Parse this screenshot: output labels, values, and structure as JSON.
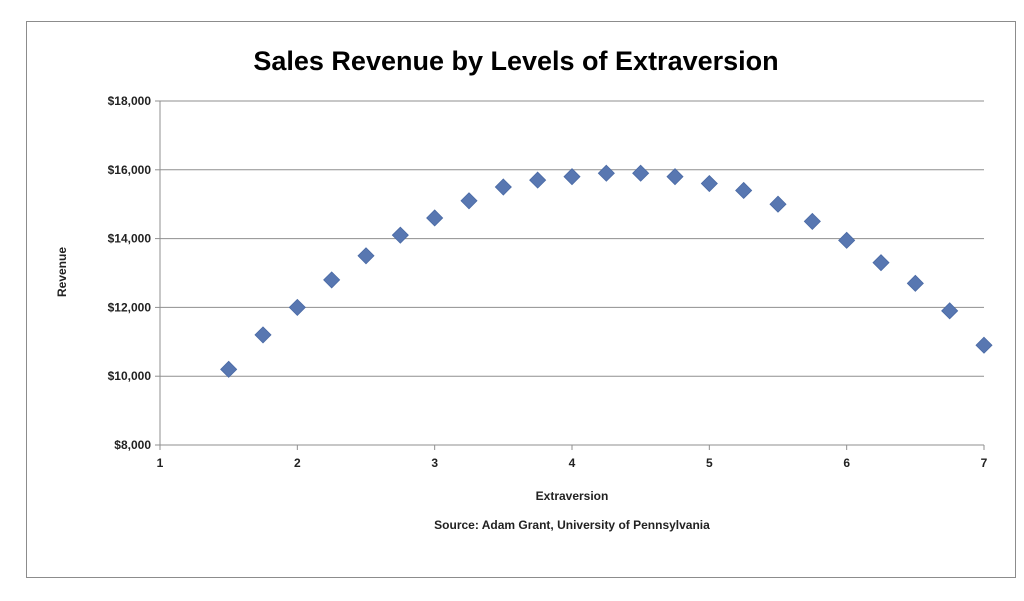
{
  "chart_data": {
    "type": "scatter",
    "title": "Sales Revenue by Levels of Extraversion",
    "xlabel": "Extraversion",
    "ylabel": "Revenue",
    "source": "Source: Adam Grant, University of Pennsylvania",
    "xlim": [
      1,
      7
    ],
    "ylim": [
      8000,
      18000
    ],
    "x_ticks": [
      1,
      2,
      3,
      4,
      5,
      6,
      7
    ],
    "y_ticks": [
      8000,
      10000,
      12000,
      14000,
      16000,
      18000
    ],
    "x_tick_labels": [
      "1",
      "2",
      "3",
      "4",
      "5",
      "6",
      "7"
    ],
    "y_tick_labels": [
      "$8,000",
      "$10,000",
      "$12,000",
      "$14,000",
      "$16,000",
      "$18,000"
    ],
    "grid": "horizontal",
    "marker": "diamond",
    "marker_color": "#5877b1",
    "points": [
      {
        "x": 1.5,
        "y": 10200
      },
      {
        "x": 1.75,
        "y": 11200
      },
      {
        "x": 2.0,
        "y": 12000
      },
      {
        "x": 2.25,
        "y": 12800
      },
      {
        "x": 2.5,
        "y": 13500
      },
      {
        "x": 2.75,
        "y": 14100
      },
      {
        "x": 3.0,
        "y": 14600
      },
      {
        "x": 3.25,
        "y": 15100
      },
      {
        "x": 3.5,
        "y": 15500
      },
      {
        "x": 3.75,
        "y": 15700
      },
      {
        "x": 4.0,
        "y": 15800
      },
      {
        "x": 4.25,
        "y": 15900
      },
      {
        "x": 4.5,
        "y": 15900
      },
      {
        "x": 4.75,
        "y": 15800
      },
      {
        "x": 5.0,
        "y": 15600
      },
      {
        "x": 5.25,
        "y": 15400
      },
      {
        "x": 5.5,
        "y": 15000
      },
      {
        "x": 5.75,
        "y": 14500
      },
      {
        "x": 6.0,
        "y": 13950
      },
      {
        "x": 6.25,
        "y": 13300
      },
      {
        "x": 6.5,
        "y": 12700
      },
      {
        "x": 6.75,
        "y": 11900
      },
      {
        "x": 7.0,
        "y": 10900
      }
    ]
  }
}
